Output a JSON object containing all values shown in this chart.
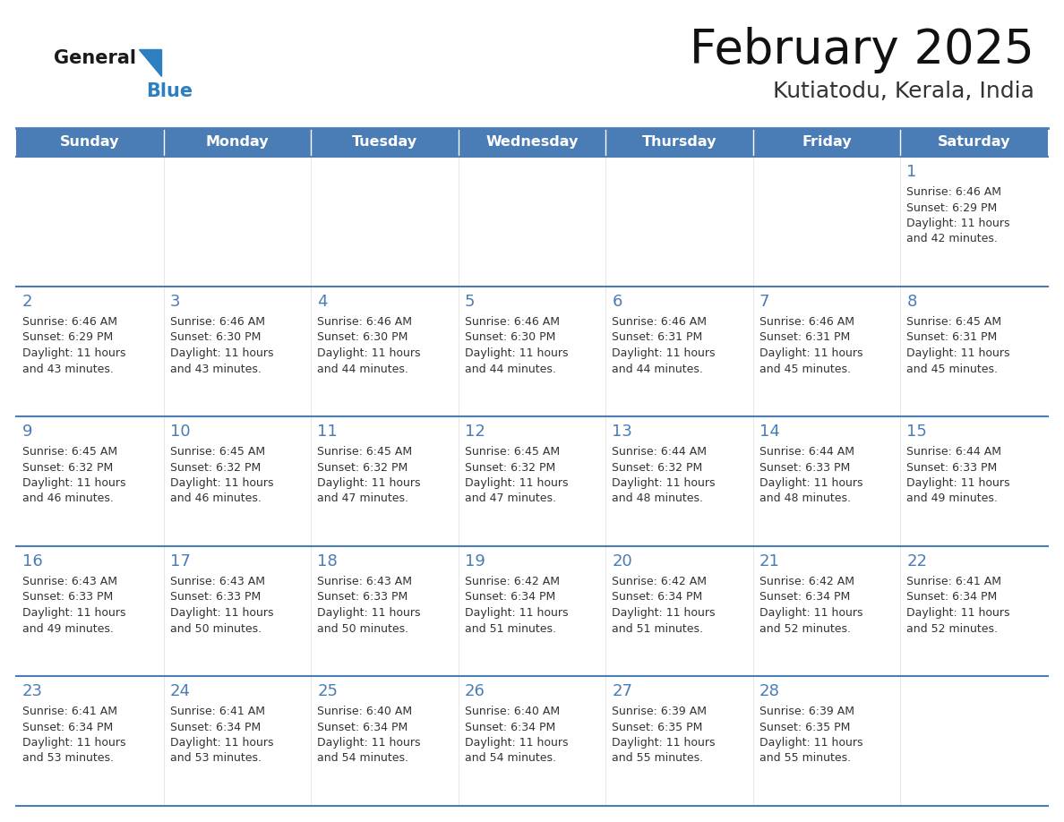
{
  "title": "February 2025",
  "subtitle": "Kutiatodu, Kerala, India",
  "header_bg_color": "#4a7db5",
  "header_text_color": "#ffffff",
  "day_names": [
    "Sunday",
    "Monday",
    "Tuesday",
    "Wednesday",
    "Thursday",
    "Friday",
    "Saturday"
  ],
  "cell_bg_color": "#f5f5f5",
  "cell_bg_color_white": "#ffffff",
  "day_num_color": "#4a7db5",
  "text_color": "#333333",
  "border_color": "#4a7db5",
  "separator_color": "#5a8ec5",
  "logo_general_color": "#1a1a1a",
  "logo_blue_color": "#2e7fc1",
  "logo_triangle_color": "#2e7fc1",
  "calendar_data": [
    [
      null,
      null,
      null,
      null,
      null,
      null,
      1
    ],
    [
      2,
      3,
      4,
      5,
      6,
      7,
      8
    ],
    [
      9,
      10,
      11,
      12,
      13,
      14,
      15
    ],
    [
      16,
      17,
      18,
      19,
      20,
      21,
      22
    ],
    [
      23,
      24,
      25,
      26,
      27,
      28,
      null
    ]
  ],
  "sunrise_data": {
    "1": "6:46 AM",
    "2": "6:46 AM",
    "3": "6:46 AM",
    "4": "6:46 AM",
    "5": "6:46 AM",
    "6": "6:46 AM",
    "7": "6:46 AM",
    "8": "6:45 AM",
    "9": "6:45 AM",
    "10": "6:45 AM",
    "11": "6:45 AM",
    "12": "6:45 AM",
    "13": "6:44 AM",
    "14": "6:44 AM",
    "15": "6:44 AM",
    "16": "6:43 AM",
    "17": "6:43 AM",
    "18": "6:43 AM",
    "19": "6:42 AM",
    "20": "6:42 AM",
    "21": "6:42 AM",
    "22": "6:41 AM",
    "23": "6:41 AM",
    "24": "6:41 AM",
    "25": "6:40 AM",
    "26": "6:40 AM",
    "27": "6:39 AM",
    "28": "6:39 AM"
  },
  "sunset_data": {
    "1": "6:29 PM",
    "2": "6:29 PM",
    "3": "6:30 PM",
    "4": "6:30 PM",
    "5": "6:30 PM",
    "6": "6:31 PM",
    "7": "6:31 PM",
    "8": "6:31 PM",
    "9": "6:32 PM",
    "10": "6:32 PM",
    "11": "6:32 PM",
    "12": "6:32 PM",
    "13": "6:32 PM",
    "14": "6:33 PM",
    "15": "6:33 PM",
    "16": "6:33 PM",
    "17": "6:33 PM",
    "18": "6:33 PM",
    "19": "6:34 PM",
    "20": "6:34 PM",
    "21": "6:34 PM",
    "22": "6:34 PM",
    "23": "6:34 PM",
    "24": "6:34 PM",
    "25": "6:34 PM",
    "26": "6:34 PM",
    "27": "6:35 PM",
    "28": "6:35 PM"
  },
  "daylight_data": {
    "1": "11 hours and 42 minutes",
    "2": "11 hours and 43 minutes",
    "3": "11 hours and 43 minutes",
    "4": "11 hours and 44 minutes",
    "5": "11 hours and 44 minutes",
    "6": "11 hours and 44 minutes",
    "7": "11 hours and 45 minutes",
    "8": "11 hours and 45 minutes",
    "9": "11 hours and 46 minutes",
    "10": "11 hours and 46 minutes",
    "11": "11 hours and 47 minutes",
    "12": "11 hours and 47 minutes",
    "13": "11 hours and 48 minutes",
    "14": "11 hours and 48 minutes",
    "15": "11 hours and 49 minutes",
    "16": "11 hours and 49 minutes",
    "17": "11 hours and 50 minutes",
    "18": "11 hours and 50 minutes",
    "19": "11 hours and 51 minutes",
    "20": "11 hours and 51 minutes",
    "21": "11 hours and 52 minutes",
    "22": "11 hours and 52 minutes",
    "23": "11 hours and 53 minutes",
    "24": "11 hours and 53 minutes",
    "25": "11 hours and 54 minutes",
    "26": "11 hours and 54 minutes",
    "27": "11 hours and 55 minutes",
    "28": "11 hours and 55 minutes"
  }
}
